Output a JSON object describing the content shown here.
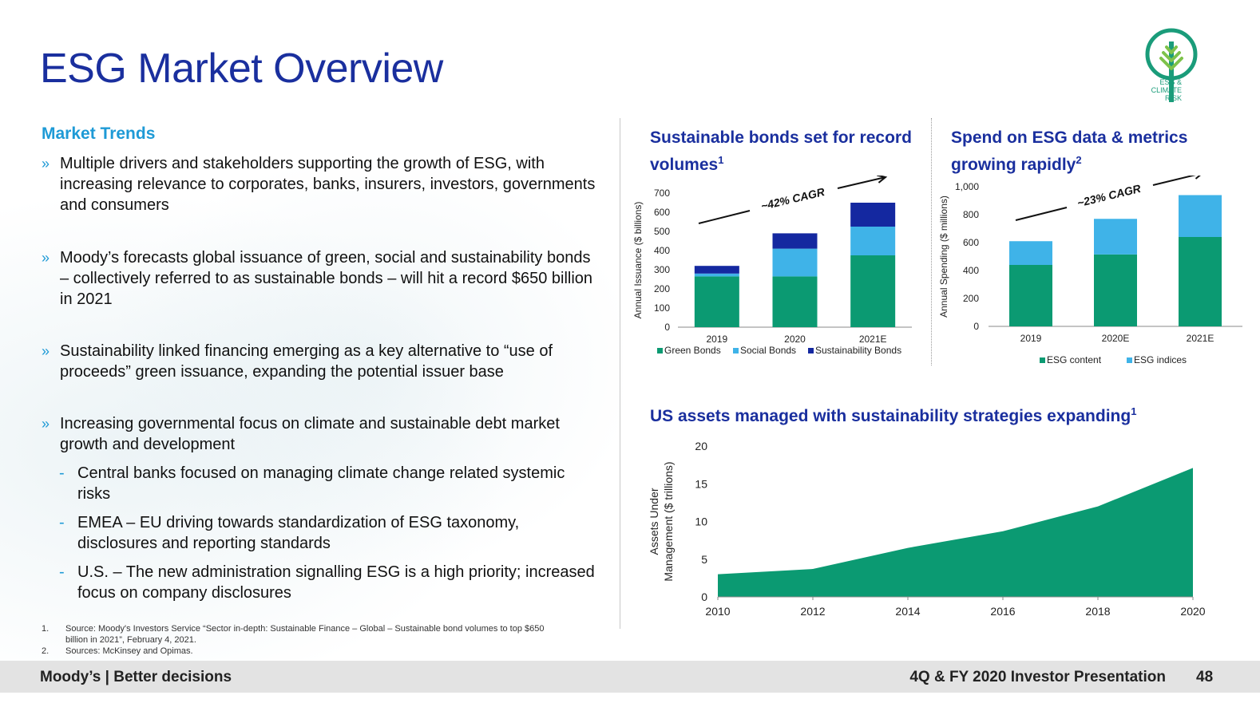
{
  "title": "ESG Market Overview",
  "logo": {
    "line1": "ESG &",
    "line2": "CLIMATE",
    "line3": "RISK"
  },
  "market_trends": {
    "heading": "Market Trends",
    "bullets": [
      {
        "text": "Multiple drivers and stakeholders supporting the growth of ESG, with increasing relevance to corporates, banks, insurers, investors, governments and consumers"
      },
      {
        "text": "Moody’s forecasts global issuance of green, social and sustainability bonds – collectively referred to as sustainable bonds – will hit a record $650 billion in 2021"
      },
      {
        "text": "Sustainability linked financing emerging as a key alternative to “use of proceeds” green issuance, expanding the potential issuer base"
      },
      {
        "text": "Increasing governmental focus on climate and sustainable debt market growth and development"
      }
    ],
    "sub_bullets": [
      "Central banks focused on managing climate change related systemic risks",
      "EMEA – EU driving towards standardization of ESG taxonomy, disclosures and reporting standards",
      "U.S. – The new administration signalling ESG is a high priority; increased focus on company disclosures"
    ],
    "bullet_marker": "»",
    "sub_marker": "-"
  },
  "footnotes": [
    {
      "num": "1.",
      "text": "Source: Moody's Investors Service “Sector in-depth: Sustainable Finance – Global – Sustainable bond volumes to top $650 billion in 2021”, February 4, 2021."
    },
    {
      "num": "2.",
      "text": "Sources: McKinsey and Opimas."
    }
  ],
  "chart_titles": {
    "bonds": {
      "text": "Sustainable bonds set for record volumes",
      "sup": "1"
    },
    "spend": {
      "text": "Spend on ESG data & metrics growing rapidly",
      "sup": "2"
    },
    "aum": {
      "text": "US assets managed with sustainability strategies expanding",
      "sup": "1"
    }
  },
  "colors": {
    "green": "#0b9a72",
    "light_blue": "#3fb3e8",
    "dark_blue": "#1428a0",
    "title_blue": "#1a2f9e",
    "accent_blue": "#1e9ad6"
  },
  "chart_data": [
    {
      "id": "bonds",
      "type": "bar",
      "stacked": true,
      "categories": [
        "2019",
        "2020",
        "2021E"
      ],
      "series": [
        {
          "name": "Green Bonds",
          "values": [
            265,
            265,
            375
          ]
        },
        {
          "name": "Social Bonds",
          "values": [
            15,
            145,
            150
          ]
        },
        {
          "name": "Sustainability Bonds",
          "values": [
            40,
            80,
            125
          ]
        }
      ],
      "ylabel": "Annual Issuance ($ billions)",
      "ylim": [
        0,
        700
      ],
      "yticks": [
        "0",
        "100",
        "200",
        "300",
        "400",
        "500",
        "600",
        "700"
      ],
      "annotation": "~42% CAGR",
      "legend": "bottom"
    },
    {
      "id": "spend",
      "type": "bar",
      "stacked": true,
      "categories": [
        "2019",
        "2020E",
        "2021E"
      ],
      "series": [
        {
          "name": "ESG content",
          "values": [
            440,
            515,
            640
          ]
        },
        {
          "name": "ESG indices",
          "values": [
            170,
            255,
            300
          ]
        }
      ],
      "ylabel": "Annual Spending ($ millions)",
      "ylim": [
        0,
        1000
      ],
      "yticks": [
        "0",
        "200",
        "400",
        "600",
        "800",
        "1,000"
      ],
      "annotation": "~23% CAGR",
      "legend": "bottom"
    },
    {
      "id": "aum",
      "type": "area",
      "x": [
        2010,
        2012,
        2014,
        2016,
        2018,
        2020
      ],
      "xticks": [
        "2010",
        "2012",
        "2014",
        "2016",
        "2018",
        "2020"
      ],
      "series": [
        {
          "values": [
            3.0,
            3.7,
            6.5,
            8.7,
            12.0,
            17.1
          ]
        }
      ],
      "ylabel_line1": "Assets Under",
      "ylabel_line2": "Management ($ trillions)",
      "ylim": [
        0,
        20
      ],
      "yticks": [
        "0",
        "5",
        "10",
        "15",
        "20"
      ]
    }
  ],
  "footer": {
    "left": "Moody’s | Better decisions",
    "right": "4Q & FY 2020 Investor Presentation",
    "page": "48"
  }
}
